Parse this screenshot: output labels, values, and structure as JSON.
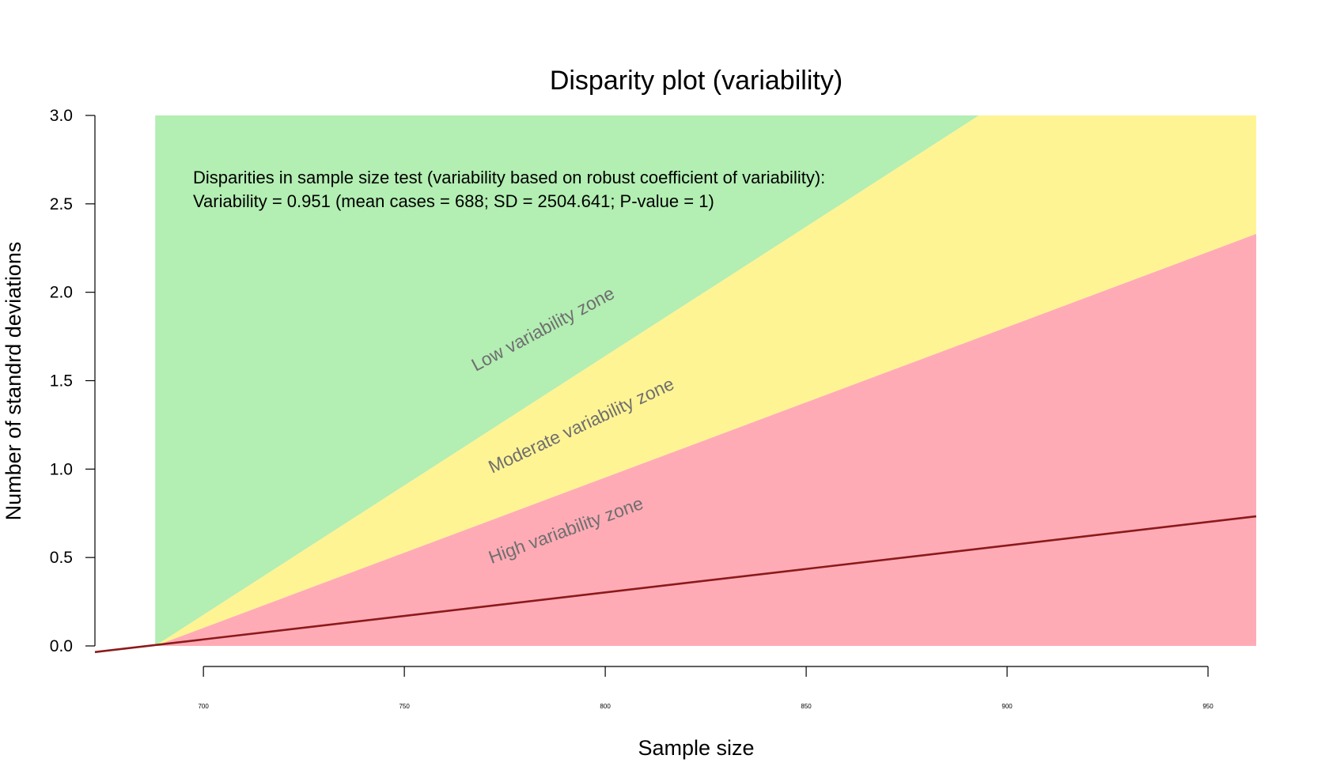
{
  "chart_data": {
    "type": "area",
    "title": "Disparity plot (variability)",
    "xlabel": "Sample size",
    "ylabel": "Number of standrd deviations",
    "xlim": [
      673,
      962
    ],
    "ylim": [
      0,
      3.0
    ],
    "x_ticks": [
      700,
      750,
      800,
      850,
      900,
      950
    ],
    "x_tick_labels": [
      "700",
      "750",
      "800",
      "850",
      "900",
      "950"
    ],
    "y_ticks": [
      0.0,
      0.5,
      1.0,
      1.5,
      2.0,
      2.5,
      3.0
    ],
    "y_tick_labels": [
      "0.0",
      "0.5",
      "1.0",
      "1.5",
      "2.0",
      "2.5",
      "3.0"
    ],
    "mean_cases": 688,
    "x_end": 962,
    "zones": [
      {
        "label": "Low variability zone",
        "color": "#b3eeb3",
        "upper_x": [
          688,
          962
        ],
        "upper_y": [
          3.0,
          3.0
        ],
        "lower_x": [
          688,
          893,
          962
        ],
        "lower_y": [
          0.0,
          3.0,
          3.0
        ]
      },
      {
        "label": "Moderate variability zone",
        "color": "#fff494",
        "upper_x": [
          688,
          893,
          962
        ],
        "upper_y": [
          0.0,
          3.0,
          3.0
        ],
        "lower_x": [
          688,
          962
        ],
        "lower_y": [
          0.0,
          2.33
        ]
      },
      {
        "label": "High variability zone",
        "color": "#ffabb6",
        "upper_x": [
          688,
          962
        ],
        "upper_y": [
          0.0,
          2.33
        ],
        "lower_x": [
          688,
          962
        ],
        "lower_y": [
          0.0,
          0.0
        ]
      }
    ],
    "series": [
      {
        "color": "#8b1a1a",
        "x": [
          673,
          962
        ],
        "y": [
          -0.035,
          0.733
        ]
      }
    ],
    "annotations": [
      "Disparities in sample size test (variability based on robust coefficient of variability):",
      "Variability = 0.951 (mean cases = 688; SD = 2504.641; P-value = 1)"
    ],
    "grid": false,
    "legend": "none"
  }
}
